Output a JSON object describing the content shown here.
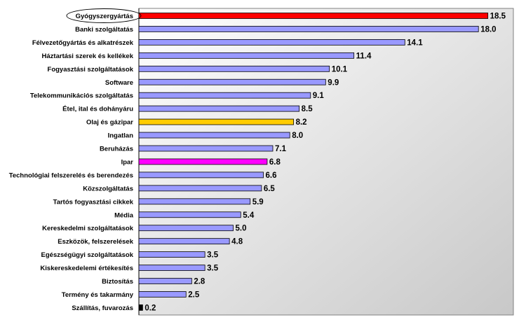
{
  "chart_data": {
    "type": "bar",
    "orientation": "horizontal",
    "title": "",
    "xlabel": "",
    "ylabel": "",
    "xlim": [
      0,
      20
    ],
    "grid": false,
    "legend": "none",
    "categories": [
      "Gyógyszergyártás",
      "Banki szolgáltatás",
      "Félvezetőgyártás és alkatrészek",
      "Háztartási szerek és kellékek",
      "Fogyasztási szolgáltatások",
      "Software",
      "Telekommunikációs szolgáltatás",
      "Étel, ital és dohányáru",
      "Olaj és gázipar",
      "Ingatlan",
      "Beruházás",
      "Ipar",
      "Technológiai felszerelés és berendezés",
      "Közszolgáltatás",
      "Tartós fogyasztási cikkek",
      "Média",
      "Kereskedelmi szolgáltatások",
      "Eszközök, felszerelések",
      "Egészségügyi szolgáltatások",
      "Kiskereskedelemi értékesítés",
      "Biztosítás",
      "Termény és takarmány",
      "Szállítás, fuvarozás"
    ],
    "values": [
      18.5,
      18.0,
      14.1,
      11.4,
      10.1,
      9.9,
      9.1,
      8.5,
      8.2,
      8.0,
      7.1,
      6.8,
      6.6,
      6.5,
      5.9,
      5.4,
      5.0,
      4.8,
      3.5,
      3.5,
      2.8,
      2.5,
      0.2
    ],
    "value_labels": [
      "18.5",
      "18.0",
      "14.1",
      "11.4",
      "10.1",
      "9.9",
      "9.1",
      "8.5",
      "8.2",
      "8.0",
      "7.1",
      "6.8",
      "6.6",
      "6.5",
      "5.9",
      "5.4",
      "5.0",
      "4.8",
      "3.5",
      "3.5",
      "2.8",
      "2.5",
      "0.2"
    ],
    "bar_colors": [
      "#ff0000",
      "#9999ff",
      "#9999ff",
      "#9999ff",
      "#9999ff",
      "#9999ff",
      "#9999ff",
      "#9999ff",
      "#ffcc00",
      "#9999ff",
      "#9999ff",
      "#ff00ff",
      "#9999ff",
      "#9999ff",
      "#9999ff",
      "#9999ff",
      "#9999ff",
      "#9999ff",
      "#9999ff",
      "#9999ff",
      "#9999ff",
      "#9999ff",
      "#000000"
    ],
    "highlighted_category": "Gyógyszergyártás",
    "plot_background_gradient": [
      "#ffffff",
      "#c8c8c8"
    ]
  }
}
